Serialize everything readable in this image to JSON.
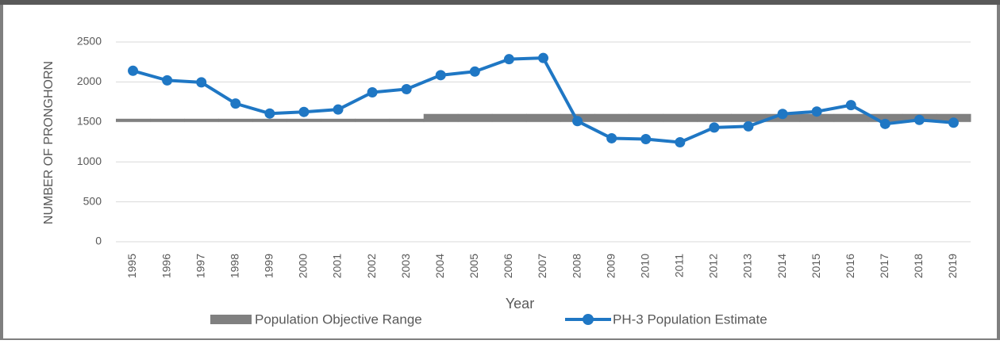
{
  "chart_data": {
    "type": "line",
    "x_label": "Year",
    "y_label": "NUMBER OF PRONGHORN",
    "categories": [
      "1995",
      "1996",
      "1997",
      "1998",
      "1999",
      "2000",
      "2001",
      "2002",
      "2003",
      "2004",
      "2005",
      "2006",
      "2007",
      "2008",
      "2009",
      "2010",
      "2011",
      "2012",
      "2013",
      "2014",
      "2015",
      "2016",
      "2017",
      "2018",
      "2019"
    ],
    "range": {
      "name": "Population Objective Range",
      "color": "#808080",
      "low": [
        1500,
        1500,
        1500,
        1500,
        1500,
        1500,
        1500,
        1500,
        1500,
        1500,
        1500,
        1500,
        1500,
        1500,
        1500,
        1500,
        1500,
        1500,
        1500,
        1500,
        1500,
        1500,
        1500,
        1500,
        1500
      ],
      "high": [
        1500,
        1500,
        1500,
        1500,
        1500,
        1500,
        1500,
        1500,
        1500,
        1600,
        1600,
        1600,
        1600,
        1600,
        1600,
        1600,
        1600,
        1600,
        1600,
        1600,
        1600,
        1600,
        1600,
        1600,
        1600
      ]
    },
    "series": [
      {
        "name": "PH-3 Population Estimate",
        "color": "#1f77c4",
        "values": [
          2140,
          2020,
          1995,
          1730,
          1605,
          1625,
          1655,
          1870,
          1910,
          2085,
          2130,
          2285,
          2300,
          1510,
          1295,
          1285,
          1245,
          1430,
          1445,
          1600,
          1630,
          1710,
          1475,
          1525,
          1490
        ]
      }
    ],
    "ylim": [
      0,
      2500
    ],
    "yticks": [
      0,
      500,
      1000,
      1500,
      2000,
      2500
    ],
    "grid": true
  }
}
